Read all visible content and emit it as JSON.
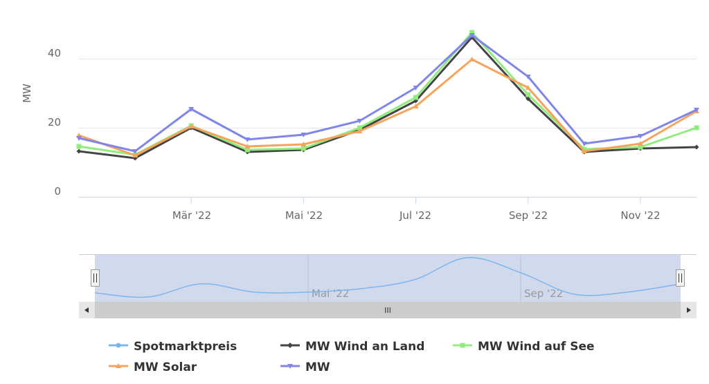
{
  "chart_data": {
    "type": "line",
    "title": "",
    "xlabel": "",
    "ylabel": "MW",
    "ylim": [
      0,
      50
    ],
    "y_ticks": [
      "0",
      "20",
      "40"
    ],
    "x_ticks": [
      "Mär '22",
      "Mai '22",
      "Jul '22",
      "Sep '22",
      "Nov '22"
    ],
    "x": [
      "Jan '22",
      "Feb '22",
      "Mär '22",
      "Apr '22",
      "Mai '22",
      "Jun '22",
      "Jul '22",
      "Aug '22",
      "Sep '22",
      "Okt '22",
      "Nov '22",
      "Dez '22"
    ],
    "grid": true,
    "legend_position": "bottom",
    "series": [
      {
        "name": "Spotmarktpreis",
        "color": "#7cb5ec",
        "marker": "circle",
        "visible_in_main": false,
        "navigator_values": [
          80,
          50,
          145,
          85,
          85,
          110,
          175,
          335,
          225,
          70,
          85,
          145
        ]
      },
      {
        "name": "MW Wind an Land",
        "color": "#434348",
        "marker": "diamond",
        "values": [
          13.2,
          11.2,
          20.0,
          13.0,
          13.6,
          19.4,
          27.8,
          46.2,
          28.4,
          13.0,
          14.0,
          14.4
        ]
      },
      {
        "name": "MW Wind auf See",
        "color": "#90ed7d",
        "marker": "square",
        "values": [
          14.6,
          12.2,
          20.6,
          13.6,
          14.0,
          20.0,
          28.8,
          47.6,
          29.6,
          13.8,
          14.4,
          20.0
        ]
      },
      {
        "name": "MW Solar",
        "color": "#f7a35c",
        "marker": "triangle",
        "values": [
          17.8,
          12.0,
          20.4,
          14.6,
          15.2,
          19.0,
          26.2,
          39.8,
          31.6,
          13.2,
          15.4,
          24.8
        ]
      },
      {
        "name": "MW",
        "color": "#8085e9",
        "marker": "triangle-down",
        "values": [
          17.0,
          13.2,
          25.4,
          16.6,
          18.0,
          22.0,
          31.6,
          46.8,
          34.8,
          15.4,
          17.6,
          25.2
        ]
      }
    ],
    "navigator": {
      "labels": [
        "Mai '22",
        "Sep '22"
      ],
      "selected_range": [
        "Jan '22",
        "Dez '22"
      ]
    }
  },
  "scrollbar": {
    "grip": "III"
  }
}
